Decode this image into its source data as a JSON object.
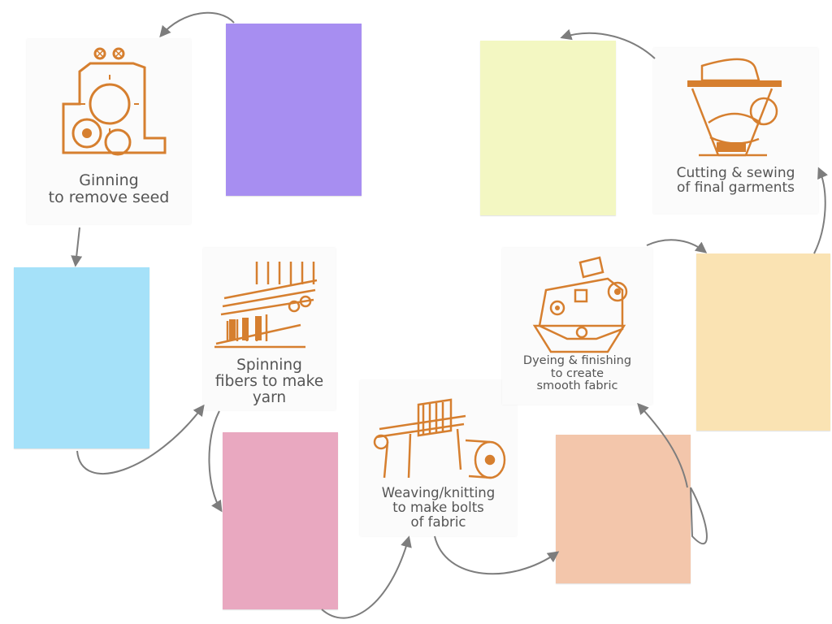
{
  "colors": {
    "icon": "#d67f2f",
    "arrow": "#7d7d7d",
    "card_bg": "#fbfbfb",
    "text": "#555555",
    "notes": {
      "purple": "#a78ef1",
      "blue": "#a5e1f9",
      "pink": "#e9a8c0",
      "peach": "#f3c6ab",
      "yellow_green": "#f3f7c2",
      "light_orange": "#fae3b3"
    }
  },
  "steps": [
    {
      "id": "ginning",
      "icon": "ginning-machine-icon",
      "lines": [
        "Ginning",
        "to remove seed"
      ]
    },
    {
      "id": "spinning",
      "icon": "spinning-frame-icon",
      "lines": [
        "Spinning",
        "fibers to make",
        "yarn"
      ]
    },
    {
      "id": "weaving",
      "icon": "loom-icon",
      "lines": [
        "Weaving/knitting",
        "to make bolts",
        "of fabric"
      ]
    },
    {
      "id": "dyeing",
      "icon": "dyeing-machine-icon",
      "lines": [
        "Dyeing & finishing",
        "to create",
        "smooth fabric"
      ]
    },
    {
      "id": "sewing",
      "icon": "sewing-machine-icon",
      "lines": [
        "Cutting & sewing",
        "of final garments"
      ]
    }
  ]
}
